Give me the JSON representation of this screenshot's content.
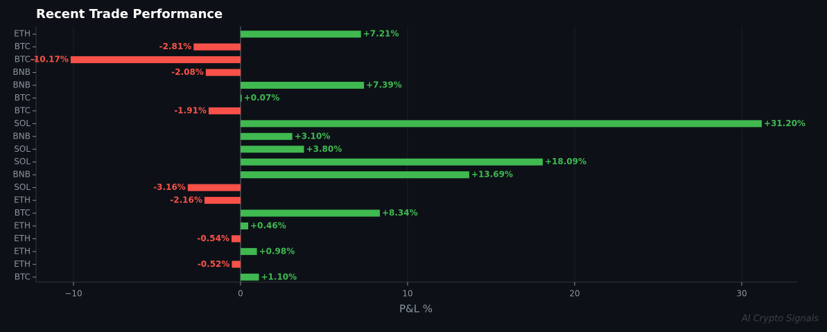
{
  "chart_data": {
    "type": "barh",
    "title": "Recent Trade Performance",
    "x_label": "P&L %",
    "watermark": "AI Crypto Signals",
    "categories": [
      "ETH",
      "BTC",
      "BTC",
      "BNB",
      "BNB",
      "BTC",
      "BTC",
      "SOL",
      "BNB",
      "SOL",
      "SOL",
      "BNB",
      "SOL",
      "ETH",
      "BTC",
      "ETH",
      "ETH",
      "ETH",
      "ETH",
      "BTC"
    ],
    "values": [
      7.21,
      -2.81,
      -10.17,
      -2.08,
      7.39,
      0.07,
      -1.91,
      31.2,
      3.1,
      3.8,
      18.09,
      13.69,
      -3.16,
      -2.16,
      8.34,
      0.46,
      -0.54,
      0.98,
      -0.52,
      1.1
    ],
    "value_labels": [
      "+7.21%",
      "-2.81%",
      "-10.17%",
      "-2.08%",
      "+7.39%",
      "+0.07%",
      "-1.91%",
      "+31.20%",
      "+3.10%",
      "+3.80%",
      "+18.09%",
      "+13.69%",
      "-3.16%",
      "-2.16%",
      "+8.34%",
      "+0.46%",
      "-0.54%",
      "+0.98%",
      "-0.52%",
      "+1.10%"
    ],
    "positive_color": "#3fb950",
    "negative_color": "#f85149",
    "xlim": [
      -12.24,
      33.32
    ],
    "xticks": [
      {
        "value": -10,
        "label": "−10"
      },
      0,
      10,
      20,
      30
    ],
    "grid": true
  }
}
